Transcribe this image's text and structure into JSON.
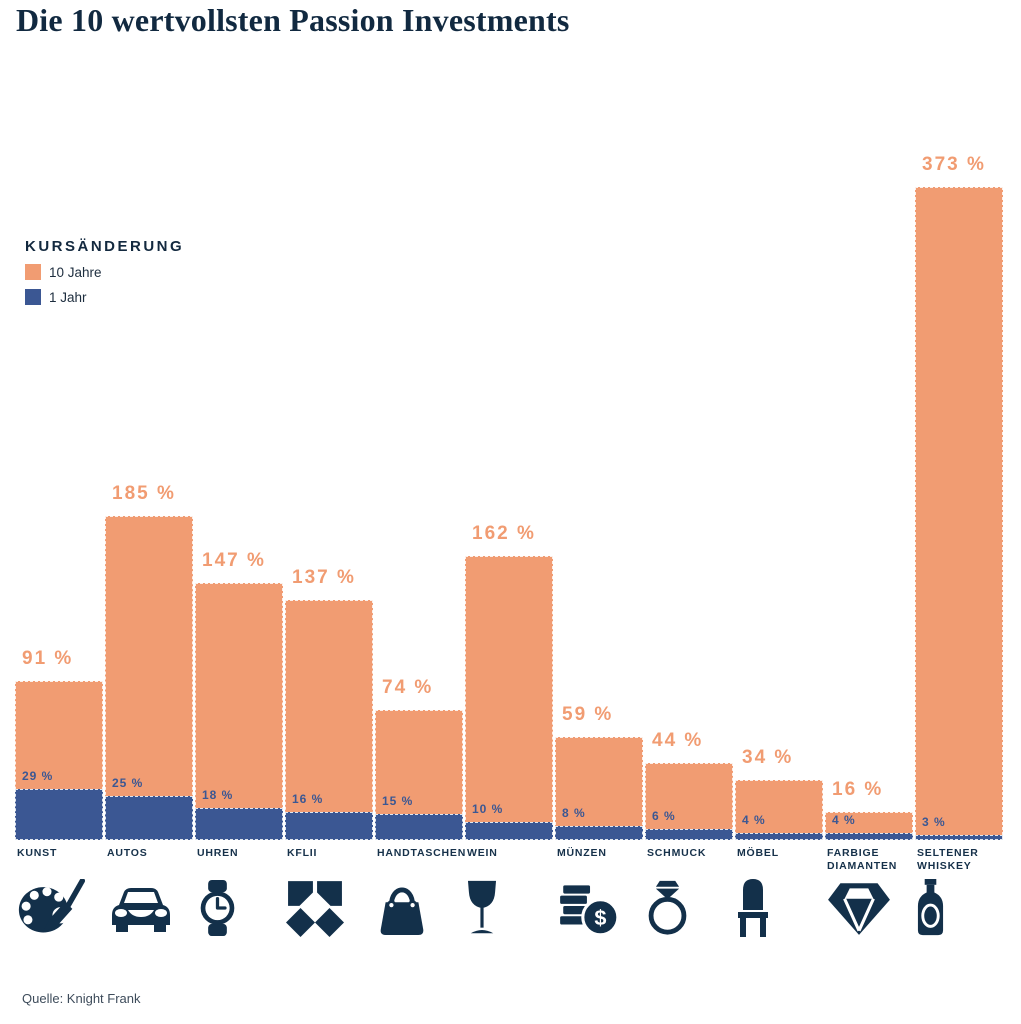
{
  "title": "Die 10 wertvollsten Passion Investments",
  "source": "Quelle: Knight Frank",
  "legend": {
    "title": "KURSÄNDERUNG",
    "items": [
      {
        "label": "10 Jahre",
        "color": "#F19C72"
      },
      {
        "label": "1 Jahr",
        "color": "#3B5793"
      }
    ]
  },
  "colors": {
    "orange": "#F19C72",
    "blue": "#3B5793",
    "navy": "#13304A",
    "title_navy": "#112940",
    "source_text": "#3E4C5B"
  },
  "chart_data": {
    "type": "bar",
    "title": "Die 10 wertvollsten Passion Investments",
    "subtitle": "KURSÄNDERUNG",
    "unit": "%",
    "ylim": [
      0,
      373
    ],
    "grid": false,
    "legend_position": "upper-left",
    "categories": [
      "KUNST",
      "AUTOS",
      "UHREN",
      "KFLII",
      "HANDTASCHEN",
      "WEIN",
      "MÜNZEN",
      "SCHMUCK",
      "MÖBEL",
      "FARBIGE DIAMANTEN",
      "SELTENER WHISKEY"
    ],
    "icons": [
      "art-palette-icon",
      "car-icon",
      "watch-icon",
      "kflii-logo-icon",
      "handbag-icon",
      "wine-glass-icon",
      "coins-icon",
      "ring-icon",
      "chair-icon",
      "diamond-icon",
      "whiskey-bottle-icon"
    ],
    "series": [
      {
        "name": "10 Jahre",
        "color": "#F19C72",
        "values": [
          91,
          185,
          147,
          137,
          74,
          162,
          59,
          44,
          34,
          16,
          373
        ]
      },
      {
        "name": "1 Jahr",
        "color": "#3B5793",
        "values": [
          29,
          25,
          18,
          16,
          15,
          10,
          8,
          6,
          4,
          4,
          3
        ]
      }
    ],
    "value_label_format": "{v} %"
  }
}
